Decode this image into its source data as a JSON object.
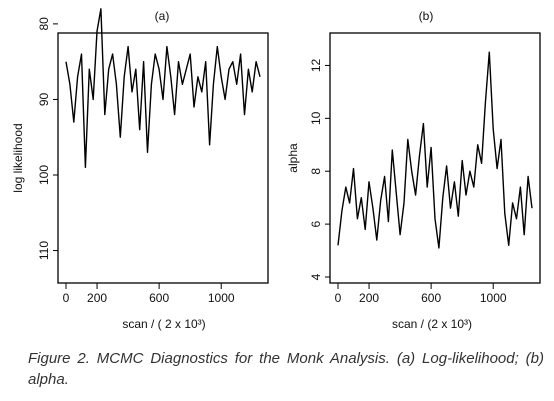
{
  "figure_caption": "Figure 2. MCMC Diagnostics for the Monk Analysis. (a) Log-likelihood; (b) alpha.",
  "chart_data": [
    {
      "type": "line",
      "title": "(a)",
      "xlabel": "scan / ( 2 x 10³)",
      "ylabel": "log likelihood",
      "xlim": [
        0,
        1250
      ],
      "ylim": [
        82.0,
        113.5
      ],
      "y_reversed": true,
      "xticks": [
        0,
        200,
        600,
        1000
      ],
      "xtick_labels": [
        "0",
        "200",
        "600",
        "1000"
      ],
      "yticks": [
        80,
        90,
        100,
        110
      ],
      "ytick_labels": [
        "80",
        "90",
        "100",
        "110"
      ],
      "grid": false,
      "legend": "none",
      "trace_color": "#000000",
      "series": [
        {
          "x": [
            0,
            25,
            50,
            75,
            100,
            125,
            150,
            175,
            200,
            225,
            250,
            275,
            300,
            325,
            350,
            375,
            400,
            425,
            450,
            475,
            500,
            525,
            550,
            575,
            600,
            625,
            650,
            675,
            700,
            725,
            750,
            775,
            800,
            825,
            850,
            875,
            900,
            925,
            950,
            975,
            1000,
            1025,
            1050,
            1075,
            1100,
            1125,
            1150,
            1175,
            1200,
            1225,
            1250
          ],
          "values": [
            85,
            88,
            93,
            87,
            84,
            99,
            86,
            90,
            81,
            78,
            92,
            86,
            84,
            88,
            95,
            87,
            83,
            89,
            86,
            94,
            85,
            97,
            88,
            84,
            86,
            90,
            83,
            87,
            92,
            85,
            88,
            86,
            84,
            91,
            87,
            89,
            85,
            96,
            88,
            83,
            87,
            90,
            86,
            85,
            88,
            84,
            92,
            86,
            89,
            85,
            87
          ]
        }
      ]
    },
    {
      "type": "line",
      "title": "(b)",
      "xlabel": "scan / (2 x 10³)",
      "ylabel": "alpha",
      "xlim": [
        0,
        1250
      ],
      "ylim": [
        4.0,
        13.0
      ],
      "xticks": [
        0,
        200,
        600,
        1000
      ],
      "xtick_labels": [
        "0",
        "200",
        "600",
        "1000"
      ],
      "yticks": [
        4,
        6,
        8,
        10,
        12
      ],
      "ytick_labels": [
        "4",
        "6",
        "8",
        "10",
        "12"
      ],
      "grid": false,
      "legend": "none",
      "trace_color": "#000000",
      "series": [
        {
          "x": [
            0,
            25,
            50,
            75,
            100,
            125,
            150,
            175,
            200,
            225,
            250,
            275,
            300,
            325,
            350,
            375,
            400,
            425,
            450,
            475,
            500,
            525,
            550,
            575,
            600,
            625,
            650,
            675,
            700,
            725,
            750,
            775,
            800,
            825,
            850,
            875,
            900,
            925,
            950,
            975,
            1000,
            1025,
            1050,
            1075,
            1100,
            1125,
            1150,
            1175,
            1200,
            1225,
            1250
          ],
          "values": [
            5.2,
            6.5,
            7.4,
            6.8,
            8.1,
            6.2,
            7.0,
            5.8,
            7.6,
            6.6,
            5.4,
            6.9,
            7.8,
            6.1,
            8.8,
            7.2,
            5.6,
            6.8,
            9.2,
            8.0,
            7.1,
            8.6,
            9.8,
            7.4,
            8.9,
            6.2,
            5.1,
            7.0,
            8.2,
            6.6,
            7.6,
            6.3,
            8.4,
            7.1,
            8.0,
            7.4,
            9.0,
            8.3,
            10.6,
            12.5,
            9.6,
            8.1,
            9.2,
            6.4,
            5.2,
            6.8,
            6.2,
            7.4,
            5.6,
            7.8,
            6.6
          ]
        }
      ]
    }
  ]
}
